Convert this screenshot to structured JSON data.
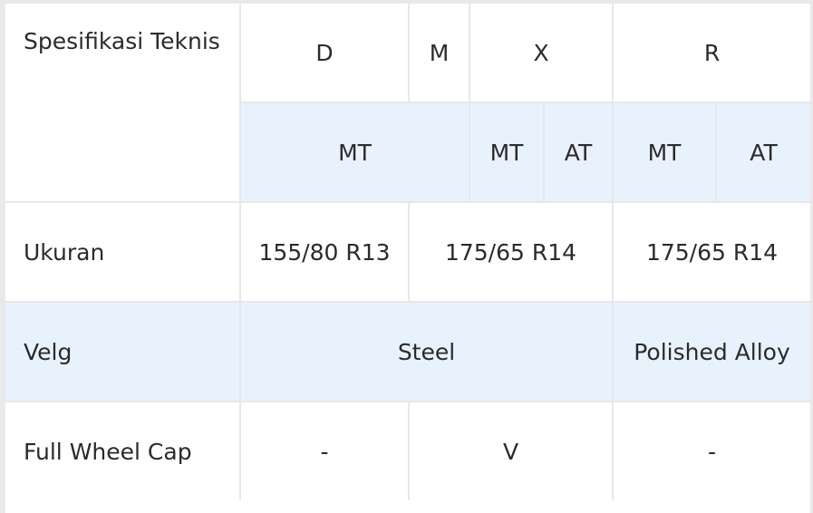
{
  "table": {
    "header": {
      "spec_label": "Spesifikasi Teknis",
      "variants": [
        "D",
        "M",
        "X",
        "R"
      ],
      "transmissions": [
        "MT",
        "MT",
        "AT",
        "MT",
        "AT"
      ]
    },
    "rows": [
      {
        "label": "Ukuran",
        "cells": [
          "155/80 R13",
          "175/65 R14",
          "175/65 R14"
        ]
      },
      {
        "label": "Velg",
        "cells": [
          "Steel",
          "Polished Alloy"
        ]
      },
      {
        "label": "Full Wheel Cap",
        "cells": [
          "-",
          "V",
          "-"
        ]
      }
    ]
  }
}
